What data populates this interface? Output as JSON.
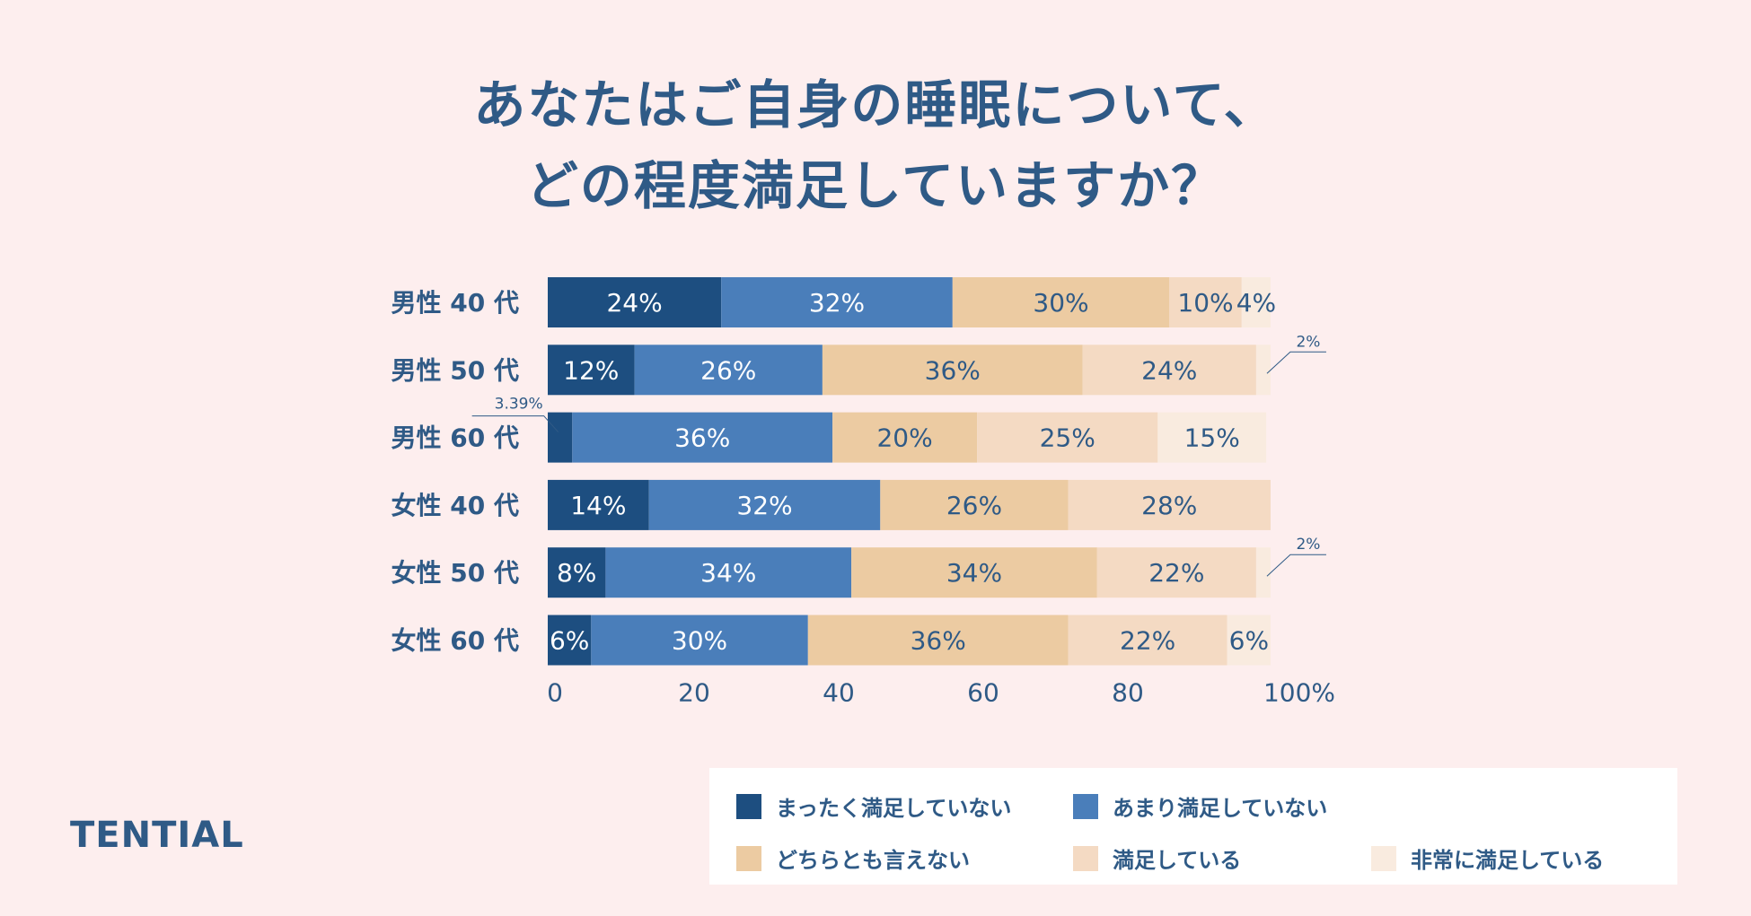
{
  "title": {
    "line1": "あなたはご自身の睡眠について、",
    "line2": "どの程度満足していますか？"
  },
  "brand": "TENTIAL",
  "colors": {
    "background": "#fdeeee",
    "text": "#2f5a86",
    "series": [
      "#1d4e80",
      "#4a7eba",
      "#eccba2",
      "#f4dac3",
      "#f9ebdf"
    ]
  },
  "chart_data": {
    "type": "bar",
    "orientation": "horizontal",
    "stacked": true,
    "categories": [
      "男性 40 代",
      "男性 50 代",
      "男性 60 代",
      "女性 40 代",
      "女性 50 代",
      "女性 60 代"
    ],
    "series": [
      {
        "name": "まったく満足していない",
        "values": [
          24,
          12,
          3.39,
          14,
          8,
          6
        ],
        "labels": [
          "24%",
          "12%",
          "3.39%",
          "14%",
          "8%",
          "6%"
        ]
      },
      {
        "name": "あまり満足していない",
        "values": [
          32,
          26,
          36,
          32,
          34,
          30
        ],
        "labels": [
          "32%",
          "26%",
          "36%",
          "32%",
          "34%",
          "30%"
        ]
      },
      {
        "name": "どちらとも言えない",
        "values": [
          30,
          36,
          20,
          26,
          34,
          36
        ],
        "labels": [
          "30%",
          "36%",
          "20%",
          "26%",
          "34%",
          "36%"
        ]
      },
      {
        "name": "満足している",
        "values": [
          10,
          24,
          25,
          28,
          22,
          22
        ],
        "labels": [
          "10%",
          "24%",
          "25%",
          "28%",
          "22%",
          "22%"
        ]
      },
      {
        "name": "非常に満足している",
        "values": [
          4,
          2,
          15,
          0,
          2,
          6
        ],
        "labels": [
          "4%",
          "2%",
          "15%",
          "",
          "2%",
          "6%"
        ]
      }
    ],
    "callouts": [
      {
        "category_index": 1,
        "series_index": 4,
        "text": "2%"
      },
      {
        "category_index": 2,
        "series_index": 0,
        "text": "3.39%"
      },
      {
        "category_index": 4,
        "series_index": 4,
        "text": "2%"
      }
    ],
    "xaxis": {
      "ticks": [
        0,
        20,
        40,
        60,
        80,
        100
      ],
      "tick_labels": [
        "0",
        "20",
        "40",
        "60",
        "80",
        "100%"
      ],
      "range": [
        0,
        100
      ]
    },
    "legend_position": "bottom-right"
  }
}
